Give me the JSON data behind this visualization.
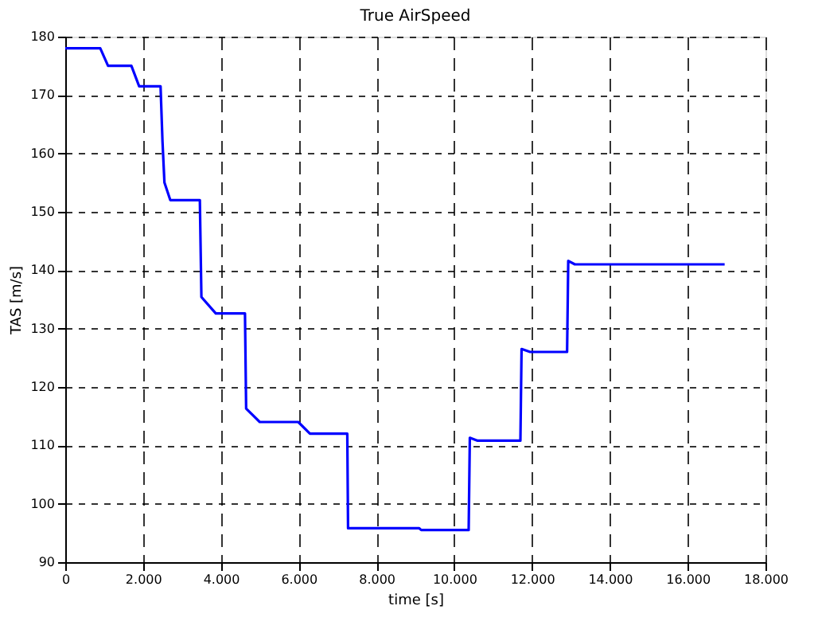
{
  "chart_data": {
    "type": "line",
    "title": "True AirSpeed",
    "xlabel": "time [s]",
    "ylabel": "TAS [m/s]",
    "x": [
      0,
      900,
      1100,
      1700,
      1900,
      2450,
      2500,
      2550,
      2700,
      3460,
      3500,
      3870,
      4620,
      4650,
      5000,
      5990,
      6290,
      7250,
      7270,
      9100,
      9150,
      10370,
      10400,
      10600,
      11700,
      11730,
      11950,
      12900,
      12930,
      13100,
      16950
    ],
    "series": [
      {
        "color": "#0000ff",
        "values": [
          178,
          178,
          175,
          175,
          171.5,
          171.5,
          162,
          155,
          152,
          152,
          135.4,
          132.6,
          132.6,
          116.3,
          114,
          114,
          112,
          112,
          95.8,
          95.8,
          95.5,
          95.5,
          111.3,
          110.8,
          110.8,
          126.5,
          126,
          126,
          141.6,
          141,
          141
        ]
      }
    ],
    "xlim": [
      0,
      18000
    ],
    "ylim": [
      90,
      180
    ],
    "xticks": [
      0,
      {
        "value": 2000,
        "label": "2.000"
      },
      {
        "value": 4000,
        "label": "4.000"
      },
      {
        "value": 6000,
        "label": "6.000"
      },
      {
        "value": 8000,
        "label": "8.000"
      },
      {
        "value": 10000,
        "label": "10.000"
      },
      {
        "value": 12000,
        "label": "12.000"
      },
      {
        "value": 14000,
        "label": "14.000"
      },
      {
        "value": 16000,
        "label": "16.000"
      },
      {
        "value": 18000,
        "label": "18.000"
      }
    ],
    "yticks": [
      90,
      100,
      110,
      120,
      130,
      140,
      150,
      160,
      170,
      180
    ],
    "grid": true,
    "line_style": "solid",
    "marker": "none",
    "legend": false
  }
}
